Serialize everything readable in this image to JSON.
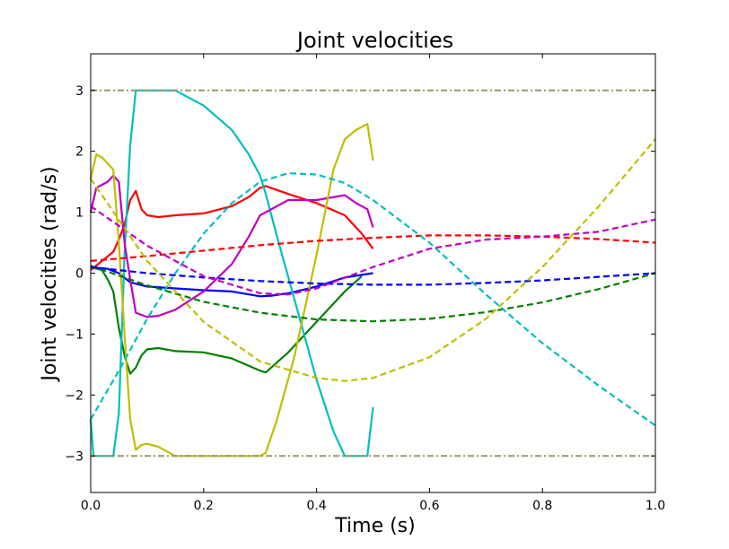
{
  "chart_data": {
    "type": "line",
    "title": "Joint velocities",
    "xlabel": "Time (s)",
    "ylabel": "Joint velocities (rad/s)",
    "xlim": [
      0.0,
      1.0
    ],
    "ylim": [
      -3.6,
      3.6
    ],
    "xticks": [
      0.0,
      0.2,
      0.4,
      0.6,
      0.8,
      1.0
    ],
    "xtick_labels": [
      "0.0",
      "0.2",
      "0.4",
      "0.6",
      "0.8",
      "1.0"
    ],
    "yticks": [
      -3,
      -2,
      -1,
      0,
      1,
      2,
      3
    ],
    "ytick_labels": [
      "−3",
      "−2",
      "−1",
      "0",
      "1",
      "2",
      "3"
    ],
    "grid": false,
    "legend": "none",
    "series": [
      {
        "style": "solid",
        "color": "#ff0000",
        "x": [
          0,
          0.02,
          0.04,
          0.05,
          0.06,
          0.07,
          0.08,
          0.09,
          0.1,
          0.12,
          0.15,
          0.2,
          0.25,
          0.28,
          0.3,
          0.31,
          0.35,
          0.4,
          0.45,
          0.48,
          0.5
        ],
        "y": [
          0.05,
          0.2,
          0.35,
          0.55,
          0.8,
          1.2,
          1.35,
          1.05,
          0.95,
          0.92,
          0.95,
          0.98,
          1.1,
          1.25,
          1.4,
          1.43,
          1.3,
          1.15,
          0.95,
          0.65,
          0.4
        ]
      },
      {
        "style": "solid",
        "color": "#008000",
        "x": [
          0,
          0.02,
          0.03,
          0.04,
          0.05,
          0.06,
          0.07,
          0.08,
          0.09,
          0.1,
          0.12,
          0.15,
          0.2,
          0.25,
          0.28,
          0.3,
          0.31,
          0.35,
          0.4,
          0.45,
          0.48
        ],
        "y": [
          0.1,
          0.05,
          -0.1,
          -0.3,
          -0.9,
          -1.35,
          -1.65,
          -1.55,
          -1.35,
          -1.25,
          -1.23,
          -1.28,
          -1.3,
          -1.4,
          -1.52,
          -1.6,
          -1.63,
          -1.3,
          -0.8,
          -0.3,
          -0.05
        ]
      },
      {
        "style": "solid",
        "color": "#0000ff",
        "x": [
          0,
          0.03,
          0.05,
          0.07,
          0.1,
          0.15,
          0.2,
          0.25,
          0.3,
          0.32,
          0.35,
          0.4,
          0.45,
          0.5
        ],
        "y": [
          0.1,
          0.07,
          0.0,
          -0.15,
          -0.22,
          -0.25,
          -0.28,
          -0.3,
          -0.38,
          -0.37,
          -0.33,
          -0.22,
          -0.07,
          0.0
        ]
      },
      {
        "style": "solid",
        "color": "#00bfbf",
        "x": [
          0,
          0.005,
          0.02,
          0.03,
          0.04,
          0.05,
          0.06,
          0.07,
          0.08,
          0.1,
          0.12,
          0.15,
          0.2,
          0.25,
          0.28,
          0.3,
          0.31,
          0.33,
          0.36,
          0.4,
          0.43,
          0.45,
          0.49,
          0.5
        ],
        "y": [
          -2.4,
          -3.0,
          -3.0,
          -3.0,
          -3.0,
          -2.3,
          0.3,
          2.1,
          3.0,
          3.0,
          3.0,
          3.0,
          2.75,
          2.35,
          1.95,
          1.6,
          1.3,
          0.6,
          -0.4,
          -1.75,
          -2.6,
          -3.0,
          -3.0,
          -2.2
        ]
      },
      {
        "style": "solid",
        "color": "#bf00bf",
        "x": [
          0,
          0.01,
          0.03,
          0.04,
          0.05,
          0.06,
          0.07,
          0.08,
          0.1,
          0.12,
          0.15,
          0.2,
          0.25,
          0.28,
          0.3,
          0.31,
          0.35,
          0.4,
          0.45,
          0.47,
          0.49,
          0.5
        ],
        "y": [
          1.0,
          1.4,
          1.5,
          1.6,
          1.5,
          0.5,
          -0.1,
          -0.65,
          -0.72,
          -0.7,
          -0.6,
          -0.3,
          0.15,
          0.6,
          0.95,
          1.0,
          1.2,
          1.2,
          1.28,
          1.15,
          1.05,
          0.75
        ]
      },
      {
        "style": "solid",
        "color": "#bfbf00",
        "x": [
          0,
          0.01,
          0.02,
          0.04,
          0.05,
          0.06,
          0.07,
          0.08,
          0.09,
          0.1,
          0.12,
          0.15,
          0.2,
          0.25,
          0.3,
          0.31,
          0.33,
          0.36,
          0.4,
          0.43,
          0.45,
          0.47,
          0.49,
          0.5
        ],
        "y": [
          1.55,
          1.95,
          1.9,
          1.7,
          0.5,
          -1.0,
          -2.4,
          -2.9,
          -2.82,
          -2.8,
          -2.85,
          -3.0,
          -3.0,
          -3.0,
          -3.0,
          -2.95,
          -2.4,
          -1.4,
          0.3,
          1.7,
          2.2,
          2.35,
          2.45,
          1.85
        ]
      },
      {
        "style": "dashed",
        "color": "#ff0000",
        "x": [
          0,
          0.1,
          0.2,
          0.3,
          0.4,
          0.5,
          0.6,
          0.7,
          0.8,
          0.9,
          1.0
        ],
        "y": [
          0.2,
          0.28,
          0.37,
          0.46,
          0.53,
          0.58,
          0.62,
          0.62,
          0.6,
          0.56,
          0.5
        ]
      },
      {
        "style": "dashed",
        "color": "#008000",
        "x": [
          0,
          0.1,
          0.2,
          0.3,
          0.4,
          0.5,
          0.6,
          0.7,
          0.8,
          0.9,
          1.0
        ],
        "y": [
          0.12,
          -0.2,
          -0.47,
          -0.65,
          -0.76,
          -0.79,
          -0.75,
          -0.64,
          -0.48,
          -0.26,
          0.0
        ]
      },
      {
        "style": "dashed",
        "color": "#0000ff",
        "x": [
          0,
          0.1,
          0.2,
          0.3,
          0.4,
          0.5,
          0.6,
          0.7,
          0.8,
          0.9,
          1.0
        ],
        "y": [
          0.1,
          0.0,
          -0.07,
          -0.13,
          -0.17,
          -0.19,
          -0.19,
          -0.16,
          -0.12,
          -0.06,
          0.0
        ]
      },
      {
        "style": "dashed",
        "color": "#00bfbf",
        "x": [
          0,
          0.05,
          0.1,
          0.15,
          0.2,
          0.25,
          0.3,
          0.35,
          0.4,
          0.45,
          0.5,
          0.6,
          0.7,
          0.8,
          0.9,
          1.0
        ],
        "y": [
          -2.4,
          -1.6,
          -0.75,
          0.0,
          0.65,
          1.15,
          1.5,
          1.64,
          1.62,
          1.48,
          1.2,
          0.5,
          -0.35,
          -1.15,
          -1.85,
          -2.5
        ]
      },
      {
        "style": "dashed",
        "color": "#bf00bf",
        "x": [
          0,
          0.1,
          0.2,
          0.3,
          0.35,
          0.4,
          0.5,
          0.6,
          0.7,
          0.8,
          0.9,
          1.0
        ],
        "y": [
          1.1,
          0.45,
          -0.05,
          -0.33,
          -0.35,
          -0.25,
          0.1,
          0.4,
          0.55,
          0.6,
          0.68,
          0.88
        ]
      },
      {
        "style": "dashed",
        "color": "#bfbf00",
        "x": [
          0,
          0.1,
          0.2,
          0.3,
          0.4,
          0.45,
          0.5,
          0.6,
          0.7,
          0.8,
          0.9,
          1.0
        ],
        "y": [
          1.55,
          0.2,
          -0.8,
          -1.45,
          -1.72,
          -1.77,
          -1.72,
          -1.38,
          -0.75,
          0.1,
          1.1,
          2.2
        ]
      },
      {
        "style": "dashdot",
        "color": "#999966",
        "x": [
          0,
          1.0
        ],
        "y": [
          3,
          3
        ]
      },
      {
        "style": "dashdot",
        "color": "#999966",
        "x": [
          0,
          1.0
        ],
        "y": [
          -3,
          -3
        ]
      }
    ]
  }
}
